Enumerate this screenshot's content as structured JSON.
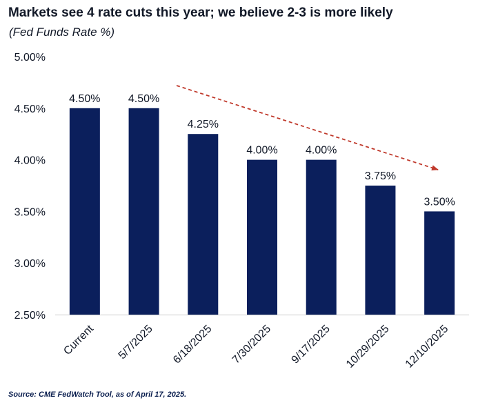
{
  "header": {
    "title": "Markets see 4 rate cuts this year; we believe 2-3 is more likely",
    "subtitle": "(Fed Funds Rate %)"
  },
  "footer": {
    "source": "Source: CME FedWatch Tool, as of April 17, 2025."
  },
  "colors": {
    "bar": "#0b1f5c",
    "arrow": "#c0392b",
    "text": "#111827",
    "axis": "#c8c8c8"
  },
  "chart_data": {
    "type": "bar",
    "title": "Markets see 4 rate cuts this year; we believe 2-3 is more likely",
    "subtitle": "(Fed Funds Rate %)",
    "xlabel": "",
    "ylabel": "",
    "categories": [
      "Current",
      "5/7/2025",
      "6/18/2025",
      "7/30/2025",
      "9/17/2025",
      "10/29/2025",
      "12/10/2025"
    ],
    "values": [
      4.5,
      4.5,
      4.25,
      4.0,
      4.0,
      3.75,
      3.5
    ],
    "data_labels": [
      "4.50%",
      "4.50%",
      "4.25%",
      "4.00%",
      "4.00%",
      "3.75%",
      "3.50%"
    ],
    "ylim": [
      2.5,
      5.0
    ],
    "yticks": [
      2.5,
      3.0,
      3.5,
      4.0,
      4.5,
      5.0
    ],
    "ytick_labels": [
      "2.50%",
      "3.00%",
      "3.50%",
      "4.00%",
      "4.50%",
      "5.00%"
    ],
    "grid": false,
    "legend": "none",
    "annotation": {
      "type": "arrow",
      "style": "dashed",
      "direction": "downward trend"
    }
  }
}
